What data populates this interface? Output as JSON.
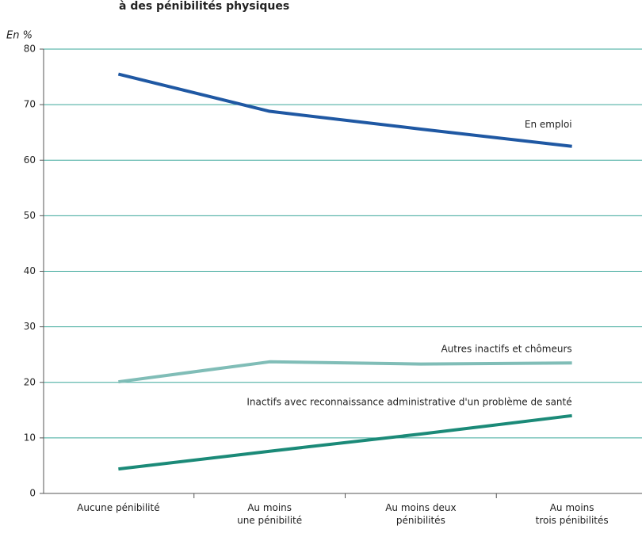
{
  "chart_data": {
    "type": "line",
    "title": "à des pénibilités physiques",
    "y_axis_label": "En %",
    "categories": [
      [
        "Aucune pénibilité"
      ],
      [
        "Au moins",
        "une pénibilité"
      ],
      [
        "Au moins deux",
        "pénibilités"
      ],
      [
        "Au moins",
        "trois pénibilités"
      ]
    ],
    "series": [
      {
        "name": "En emploi",
        "color": "#1f58a3",
        "values": [
          75.5,
          68.8,
          65.6,
          62.5
        ]
      },
      {
        "name": "Autres inactifs et chômeurs",
        "color": "#80bdb7",
        "values": [
          20.1,
          23.7,
          23.3,
          23.5
        ]
      },
      {
        "name": "Inactifs avec reconnaissance administrative d'un problème de santé",
        "color": "#1b8a78",
        "values": [
          4.4,
          7.6,
          10.7,
          14.0
        ]
      }
    ],
    "ylim": [
      0,
      80
    ],
    "yticks": [
      0,
      10,
      20,
      30,
      40,
      50,
      60,
      70,
      80
    ],
    "grid": true
  }
}
